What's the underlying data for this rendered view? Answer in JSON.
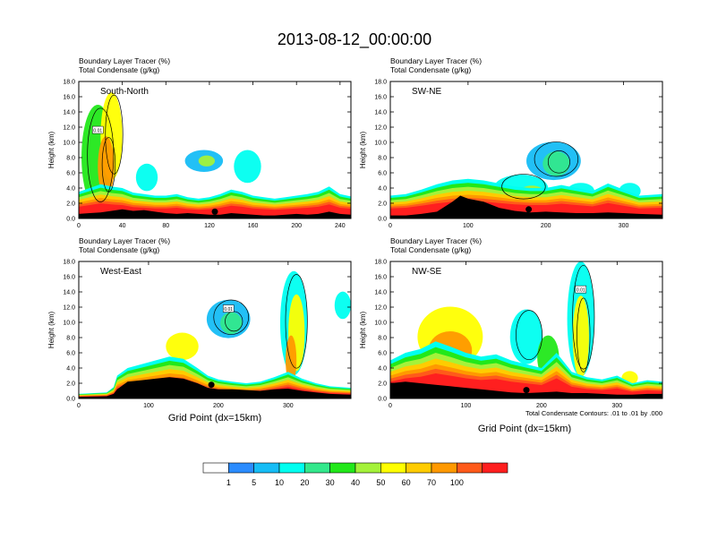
{
  "title": "2013-08-12_00:00:00",
  "x_label": "Grid Point (dx=15km)",
  "contour_note": "Total Condensate Contours: .01 to .01 by .000",
  "colors": {
    "accent_red": "#ff2222",
    "terrain": "#000000"
  },
  "colorbar": {
    "colors": [
      "#ffffff",
      "#2b8cff",
      "#16bdf6",
      "#00fff0",
      "#33e88c",
      "#22e81a",
      "#a4f23a",
      "#ffff00",
      "#ffcc00",
      "#ff9900",
      "#ff5a1a",
      "#ff1f1f"
    ],
    "labels": [
      "1",
      "5",
      "10",
      "20",
      "30",
      "40",
      "50",
      "60",
      "70",
      "100"
    ]
  },
  "chart_data": [
    {
      "type": "heatmap",
      "name": "South-North",
      "title_line1": "Boundary Layer Tracer   (%)",
      "title_line2": "Total Condensate   (g/kg)",
      "label": "South-North",
      "ylabel": "Height (km)",
      "xlim": [
        0,
        250
      ],
      "ylim": [
        0,
        18
      ],
      "xticks": [
        "0",
        "40",
        "80",
        "120",
        "160",
        "200",
        "240"
      ],
      "yticks": [
        "0.0",
        "2.0",
        "4.0",
        "6.0",
        "8.0",
        "10.0",
        "12.0",
        "14.0",
        "16.0",
        "18.0"
      ],
      "contour_labels": [
        "0.01"
      ],
      "terrain": [
        [
          0,
          0.6
        ],
        [
          10,
          0.7
        ],
        [
          20,
          0.8
        ],
        [
          30,
          1.0
        ],
        [
          40,
          1.2
        ],
        [
          50,
          1.0
        ],
        [
          60,
          1.1
        ],
        [
          70,
          0.9
        ],
        [
          80,
          0.7
        ],
        [
          90,
          0.6
        ],
        [
          100,
          0.7
        ],
        [
          110,
          0.6
        ],
        [
          120,
          0.5
        ],
        [
          130,
          0.5
        ],
        [
          140,
          0.7
        ],
        [
          150,
          0.6
        ],
        [
          160,
          0.5
        ],
        [
          170,
          0.4
        ],
        [
          180,
          0.4
        ],
        [
          190,
          0.5
        ],
        [
          200,
          0.6
        ],
        [
          210,
          0.5
        ],
        [
          220,
          0.6
        ],
        [
          230,
          0.9
        ],
        [
          240,
          0.6
        ],
        [
          250,
          0.5
        ]
      ],
      "layer_top": [
        [
          0,
          3.5
        ],
        [
          10,
          4.0
        ],
        [
          20,
          4.5
        ],
        [
          30,
          4.2
        ],
        [
          40,
          4.0
        ],
        [
          50,
          3.4
        ],
        [
          60,
          3.2
        ],
        [
          70,
          3.0
        ],
        [
          80,
          3.0
        ],
        [
          90,
          3.2
        ],
        [
          100,
          2.8
        ],
        [
          110,
          2.6
        ],
        [
          120,
          2.8
        ],
        [
          130,
          3.2
        ],
        [
          140,
          3.8
        ],
        [
          150,
          3.5
        ],
        [
          160,
          3.0
        ],
        [
          170,
          2.8
        ],
        [
          180,
          2.6
        ],
        [
          190,
          2.8
        ],
        [
          200,
          3.0
        ],
        [
          210,
          3.2
        ],
        [
          220,
          3.5
        ],
        [
          230,
          4.2
        ],
        [
          240,
          3.2
        ],
        [
          250,
          2.9
        ]
      ],
      "site_x": 125
    },
    {
      "type": "heatmap",
      "name": "SW-NE",
      "title_line1": "Boundary Layer Tracer   (%)",
      "title_line2": "Total Condensate   (g/kg)",
      "label": "SW-NE",
      "ylabel": "Height (km)",
      "xlim": [
        0,
        350
      ],
      "ylim": [
        0,
        18
      ],
      "xticks": [
        "0",
        "100",
        "200",
        "300"
      ],
      "yticks": [
        "0.0",
        "2.0",
        "4.0",
        "6.0",
        "8.0",
        "10.0",
        "12.0",
        "14.0",
        "16.0",
        "18.0"
      ],
      "contour_labels": [],
      "terrain": [
        [
          0,
          0.4
        ],
        [
          20,
          0.4
        ],
        [
          40,
          0.6
        ],
        [
          60,
          0.9
        ],
        [
          80,
          2.2
        ],
        [
          90,
          3.0
        ],
        [
          100,
          2.6
        ],
        [
          120,
          2.2
        ],
        [
          140,
          1.4
        ],
        [
          160,
          1.0
        ],
        [
          180,
          0.8
        ],
        [
          200,
          0.9
        ],
        [
          220,
          0.8
        ],
        [
          240,
          0.7
        ],
        [
          260,
          0.7
        ],
        [
          280,
          0.8
        ],
        [
          300,
          0.7
        ],
        [
          320,
          0.6
        ],
        [
          350,
          0.5
        ]
      ],
      "layer_top": [
        [
          0,
          3.0
        ],
        [
          20,
          3.2
        ],
        [
          40,
          3.8
        ],
        [
          60,
          4.5
        ],
        [
          80,
          5.0
        ],
        [
          100,
          5.2
        ],
        [
          120,
          5.0
        ],
        [
          140,
          4.6
        ],
        [
          160,
          4.2
        ],
        [
          180,
          4.0
        ],
        [
          200,
          4.0
        ],
        [
          220,
          4.4
        ],
        [
          240,
          4.0
        ],
        [
          260,
          3.6
        ],
        [
          280,
          4.6
        ],
        [
          300,
          3.8
        ],
        [
          320,
          3.0
        ],
        [
          350,
          3.2
        ]
      ],
      "site_x": 178
    },
    {
      "type": "heatmap",
      "name": "West-East",
      "title_line1": "Boundary Layer Tracer   (%)",
      "title_line2": "Total Condensate   (g/kg)",
      "label": "West-East",
      "ylabel": "Height (km)",
      "xlim": [
        0,
        390
      ],
      "ylim": [
        0,
        18
      ],
      "xticks": [
        "0",
        "100",
        "200",
        "300"
      ],
      "yticks": [
        "0.0",
        "2.0",
        "4.0",
        "6.0",
        "8.0",
        "10.0",
        "12.0",
        "14.0",
        "16.0",
        "18.0"
      ],
      "contour_labels": [
        "0.01"
      ],
      "terrain": [
        [
          0,
          0.2
        ],
        [
          40,
          0.3
        ],
        [
          50,
          0.6
        ],
        [
          55,
          1.2
        ],
        [
          70,
          2.2
        ],
        [
          90,
          2.4
        ],
        [
          110,
          2.6
        ],
        [
          130,
          2.8
        ],
        [
          150,
          2.6
        ],
        [
          170,
          2.0
        ],
        [
          185,
          1.4
        ],
        [
          200,
          1.2
        ],
        [
          220,
          1.2
        ],
        [
          240,
          1.1
        ],
        [
          260,
          1.0
        ],
        [
          280,
          1.2
        ],
        [
          300,
          1.3
        ],
        [
          320,
          1.0
        ],
        [
          340,
          0.8
        ],
        [
          360,
          0.6
        ],
        [
          390,
          0.5
        ]
      ],
      "layer_top": [
        [
          0,
          0.6
        ],
        [
          40,
          0.8
        ],
        [
          50,
          1.5
        ],
        [
          55,
          3.0
        ],
        [
          70,
          4.0
        ],
        [
          90,
          4.5
        ],
        [
          110,
          5.0
        ],
        [
          130,
          5.5
        ],
        [
          150,
          5.2
        ],
        [
          170,
          4.0
        ],
        [
          185,
          3.0
        ],
        [
          200,
          2.5
        ],
        [
          220,
          2.2
        ],
        [
          240,
          2.0
        ],
        [
          260,
          2.2
        ],
        [
          280,
          2.8
        ],
        [
          300,
          3.5
        ],
        [
          320,
          2.6
        ],
        [
          340,
          2.0
        ],
        [
          360,
          1.6
        ],
        [
          390,
          1.4
        ]
      ],
      "site_x": 190
    },
    {
      "type": "heatmap",
      "name": "NW-SE",
      "title_line1": "Boundary Layer Tracer   (%)",
      "title_line2": "Total Condensate   (g/kg)",
      "label": "NW-SE",
      "ylabel": "Height (km)",
      "xlim": [
        0,
        360
      ],
      "ylim": [
        0,
        18
      ],
      "xticks": [
        "0",
        "100",
        "200",
        "300"
      ],
      "yticks": [
        "0.0",
        "2.0",
        "4.0",
        "6.0",
        "8.0",
        "10.0",
        "12.0",
        "14.0",
        "16.0",
        "18.0"
      ],
      "contour_labels": [
        "0.01"
      ],
      "terrain": [
        [
          0,
          2.0
        ],
        [
          20,
          2.2
        ],
        [
          40,
          2.0
        ],
        [
          60,
          1.8
        ],
        [
          80,
          1.6
        ],
        [
          100,
          1.4
        ],
        [
          120,
          1.2
        ],
        [
          140,
          1.0
        ],
        [
          160,
          0.8
        ],
        [
          180,
          0.7
        ],
        [
          200,
          0.8
        ],
        [
          220,
          0.9
        ],
        [
          240,
          0.7
        ],
        [
          260,
          0.7
        ],
        [
          280,
          0.6
        ],
        [
          300,
          0.5
        ],
        [
          320,
          0.5
        ],
        [
          340,
          0.6
        ],
        [
          360,
          0.6
        ]
      ],
      "layer_top": [
        [
          0,
          5.0
        ],
        [
          20,
          6.0
        ],
        [
          40,
          6.5
        ],
        [
          60,
          7.5
        ],
        [
          80,
          6.8
        ],
        [
          100,
          6.0
        ],
        [
          120,
          5.5
        ],
        [
          140,
          5.8
        ],
        [
          160,
          5.0
        ],
        [
          180,
          4.5
        ],
        [
          200,
          4.0
        ],
        [
          220,
          6.0
        ],
        [
          240,
          3.5
        ],
        [
          260,
          2.8
        ],
        [
          280,
          2.5
        ],
        [
          300,
          3.0
        ],
        [
          320,
          2.0
        ],
        [
          340,
          2.4
        ],
        [
          360,
          2.2
        ]
      ],
      "site_x": 180
    }
  ]
}
